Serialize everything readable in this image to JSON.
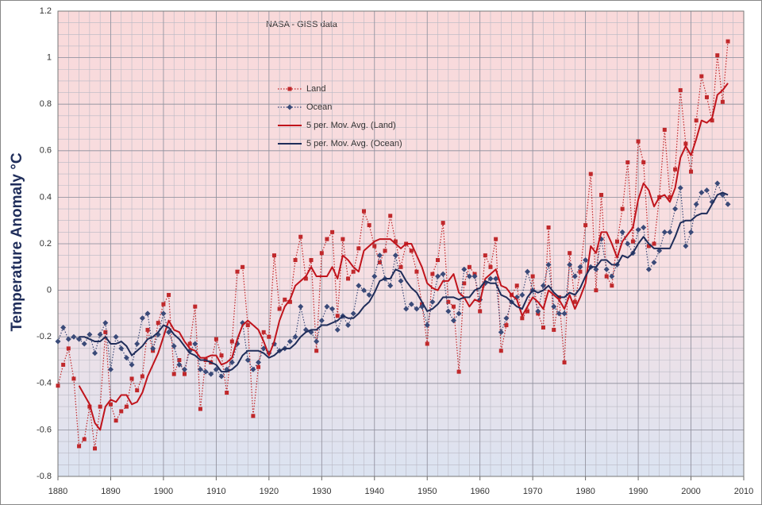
{
  "chart_data": {
    "type": "line",
    "annotation": "NASA - GISS data",
    "y_label": "Temperature Anomaly °C",
    "xlim": [
      1880,
      2010
    ],
    "xticks": [
      1880,
      1890,
      1900,
      1910,
      1920,
      1930,
      1940,
      1950,
      1960,
      1970,
      1980,
      1990,
      2000,
      2010
    ],
    "ylim": [
      -0.8,
      1.2
    ],
    "yticks": [
      -0.8,
      -0.6,
      -0.4,
      -0.2,
      0,
      0.2,
      0.4,
      0.6,
      0.8,
      1,
      1.2
    ],
    "grid": true,
    "x": [
      1880,
      1881,
      1882,
      1883,
      1884,
      1885,
      1886,
      1887,
      1888,
      1889,
      1890,
      1891,
      1892,
      1893,
      1894,
      1895,
      1896,
      1897,
      1898,
      1899,
      1900,
      1901,
      1902,
      1903,
      1904,
      1905,
      1906,
      1907,
      1908,
      1909,
      1910,
      1911,
      1912,
      1913,
      1914,
      1915,
      1916,
      1917,
      1918,
      1919,
      1920,
      1921,
      1922,
      1923,
      1924,
      1925,
      1926,
      1927,
      1928,
      1929,
      1930,
      1931,
      1932,
      1933,
      1934,
      1935,
      1936,
      1937,
      1938,
      1939,
      1940,
      1941,
      1942,
      1943,
      1944,
      1945,
      1946,
      1947,
      1948,
      1949,
      1950,
      1951,
      1952,
      1953,
      1954,
      1955,
      1956,
      1957,
      1958,
      1959,
      1960,
      1961,
      1962,
      1963,
      1964,
      1965,
      1966,
      1967,
      1968,
      1969,
      1970,
      1971,
      1972,
      1973,
      1974,
      1975,
      1976,
      1977,
      1978,
      1979,
      1980,
      1981,
      1982,
      1983,
      1984,
      1985,
      1986,
      1987,
      1988,
      1989,
      1990,
      1991,
      1992,
      1993,
      1994,
      1995,
      1996,
      1997,
      1998,
      1999,
      2000,
      2001,
      2002,
      2003,
      2004,
      2005,
      2006,
      2007
    ],
    "series": [
      {
        "name": "Land",
        "color": "#c0282b",
        "line_style": "dotted",
        "marker": "square",
        "values": [
          -0.41,
          -0.32,
          -0.25,
          -0.38,
          -0.67,
          -0.64,
          -0.5,
          -0.68,
          -0.5,
          -0.18,
          -0.49,
          -0.56,
          -0.52,
          -0.5,
          -0.38,
          -0.43,
          -0.37,
          -0.17,
          -0.26,
          -0.14,
          -0.06,
          -0.02,
          -0.36,
          -0.3,
          -0.36,
          -0.23,
          -0.07,
          -0.51,
          -0.3,
          -0.31,
          -0.21,
          -0.28,
          -0.44,
          -0.22,
          0.08,
          0.1,
          -0.15,
          -0.54,
          -0.33,
          -0.18,
          -0.2,
          0.15,
          -0.08,
          -0.04,
          -0.05,
          0.13,
          0.23,
          0.05,
          0.13,
          -0.26,
          0.16,
          0.22,
          0.25,
          -0.11,
          0.22,
          0.05,
          0.08,
          0.18,
          0.34,
          0.28,
          0.19,
          0.12,
          0.17,
          0.32,
          0.21,
          0.1,
          0.2,
          0.17,
          0.08,
          -0.06,
          -0.23,
          0.07,
          0.13,
          0.29,
          -0.05,
          -0.07,
          -0.35,
          0.03,
          0.1,
          0.07,
          -0.09,
          0.15,
          0.1,
          0.22,
          -0.26,
          -0.15,
          -0.02,
          0.02,
          -0.12,
          -0.09,
          0.06,
          -0.1,
          -0.16,
          0.27,
          -0.17,
          -0.03,
          -0.31,
          0.16,
          -0.05,
          0.08,
          0.28,
          0.5,
          0.0,
          0.41,
          0.06,
          0.02,
          0.21,
          0.35,
          0.55,
          0.21,
          0.64,
          0.55,
          0.19,
          0.2,
          0.4,
          0.69,
          0.4,
          0.52,
          0.86,
          0.63,
          0.51,
          0.73,
          0.92,
          0.83,
          0.73,
          1.01,
          0.81,
          1.07
        ]
      },
      {
        "name": "Ocean",
        "color": "#3a4a78",
        "line_style": "dotted",
        "marker": "diamond",
        "values": [
          -0.22,
          -0.16,
          -0.21,
          -0.2,
          -0.21,
          -0.23,
          -0.19,
          -0.27,
          -0.19,
          -0.14,
          -0.34,
          -0.2,
          -0.25,
          -0.29,
          -0.32,
          -0.23,
          -0.12,
          -0.1,
          -0.25,
          -0.19,
          -0.1,
          -0.18,
          -0.24,
          -0.32,
          -0.34,
          -0.26,
          -0.23,
          -0.34,
          -0.35,
          -0.36,
          -0.34,
          -0.37,
          -0.34,
          -0.31,
          -0.23,
          -0.14,
          -0.3,
          -0.34,
          -0.31,
          -0.25,
          -0.27,
          -0.23,
          -0.26,
          -0.25,
          -0.22,
          -0.2,
          -0.07,
          -0.17,
          -0.18,
          -0.22,
          -0.13,
          -0.07,
          -0.08,
          -0.17,
          -0.11,
          -0.15,
          -0.1,
          0.02,
          0.0,
          -0.02,
          0.06,
          0.15,
          0.05,
          0.02,
          0.15,
          0.04,
          -0.08,
          -0.06,
          -0.08,
          -0.07,
          -0.15,
          -0.05,
          0.06,
          0.07,
          -0.09,
          -0.13,
          -0.1,
          0.09,
          0.06,
          0.06,
          -0.04,
          0.03,
          0.05,
          0.05,
          -0.18,
          -0.12,
          -0.05,
          -0.03,
          -0.02,
          0.08,
          0.0,
          -0.09,
          0.02,
          0.11,
          -0.07,
          -0.1,
          -0.1,
          0.11,
          0.06,
          0.1,
          0.13,
          0.1,
          0.09,
          0.22,
          0.09,
          0.06,
          0.11,
          0.25,
          0.2,
          0.16,
          0.26,
          0.27,
          0.09,
          0.12,
          0.17,
          0.25,
          0.25,
          0.35,
          0.44,
          0.19,
          0.25,
          0.37,
          0.42,
          0.43,
          0.38,
          0.46,
          0.41,
          0.37
        ]
      },
      {
        "name": "5 per. Mov. Avg. (Land)",
        "color": "#c0141c",
        "line_style": "solid",
        "marker": null,
        "values": [
          null,
          null,
          null,
          null,
          -0.41,
          -0.45,
          -0.49,
          -0.57,
          -0.6,
          -0.5,
          -0.47,
          -0.48,
          -0.45,
          -0.45,
          -0.49,
          -0.48,
          -0.44,
          -0.37,
          -0.32,
          -0.27,
          -0.2,
          -0.13,
          -0.17,
          -0.18,
          -0.22,
          -0.25,
          -0.26,
          -0.29,
          -0.29,
          -0.28,
          -0.28,
          -0.32,
          -0.31,
          -0.29,
          -0.21,
          -0.15,
          -0.13,
          -0.15,
          -0.17,
          -0.22,
          -0.28,
          -0.22,
          -0.13,
          -0.07,
          -0.04,
          0.02,
          0.04,
          0.06,
          0.1,
          0.06,
          0.06,
          0.06,
          0.1,
          0.05,
          0.15,
          0.13,
          0.1,
          0.08,
          0.17,
          0.19,
          0.21,
          0.22,
          0.22,
          0.22,
          0.2,
          0.18,
          0.2,
          0.2,
          0.15,
          0.1,
          0.03,
          0.01,
          0.0,
          0.04,
          0.04,
          0.07,
          -0.01,
          -0.03,
          -0.07,
          -0.04,
          -0.05,
          0.05,
          0.07,
          0.09,
          0.02,
          0.01,
          -0.02,
          -0.04,
          -0.11,
          -0.07,
          -0.03,
          -0.05,
          -0.08,
          0.0,
          -0.02,
          -0.04,
          -0.08,
          -0.02,
          -0.08,
          -0.03,
          0.03,
          0.19,
          0.16,
          0.25,
          0.25,
          0.2,
          0.14,
          0.21,
          0.24,
          0.27,
          0.39,
          0.46,
          0.43,
          0.36,
          0.4,
          0.41,
          0.38,
          0.44,
          0.57,
          0.62,
          0.58,
          0.65,
          0.73,
          0.72,
          0.74,
          0.84,
          0.86,
          0.89
        ]
      },
      {
        "name": "5 per. Mov. Avg. (Ocean)",
        "color": "#1f2d5a",
        "line_style": "solid",
        "marker": null,
        "values": [
          null,
          null,
          null,
          null,
          -0.2,
          -0.2,
          -0.21,
          -0.22,
          -0.22,
          -0.2,
          -0.23,
          -0.23,
          -0.22,
          -0.24,
          -0.28,
          -0.26,
          -0.24,
          -0.21,
          -0.2,
          -0.18,
          -0.15,
          -0.16,
          -0.19,
          -0.21,
          -0.24,
          -0.27,
          -0.28,
          -0.3,
          -0.3,
          -0.31,
          -0.32,
          -0.35,
          -0.35,
          -0.34,
          -0.32,
          -0.28,
          -0.26,
          -0.26,
          -0.26,
          -0.27,
          -0.29,
          -0.28,
          -0.26,
          -0.25,
          -0.25,
          -0.23,
          -0.2,
          -0.18,
          -0.17,
          -0.17,
          -0.15,
          -0.15,
          -0.14,
          -0.13,
          -0.11,
          -0.12,
          -0.12,
          -0.1,
          -0.07,
          -0.05,
          -0.01,
          0.04,
          0.05,
          0.05,
          0.09,
          0.08,
          0.04,
          0.01,
          -0.01,
          -0.05,
          -0.09,
          -0.08,
          -0.06,
          -0.03,
          -0.03,
          -0.03,
          -0.04,
          -0.03,
          -0.03,
          0.0,
          0.01,
          0.04,
          0.03,
          0.03,
          -0.02,
          -0.03,
          -0.05,
          -0.07,
          -0.08,
          -0.03,
          0.0,
          -0.01,
          0.0,
          0.02,
          -0.01,
          -0.03,
          -0.03,
          -0.01,
          -0.02,
          0.01,
          0.06,
          0.1,
          0.1,
          0.13,
          0.13,
          0.11,
          0.11,
          0.15,
          0.14,
          0.16,
          0.2,
          0.23,
          0.2,
          0.18,
          0.18,
          0.18,
          0.18,
          0.23,
          0.29,
          0.3,
          0.3,
          0.32,
          0.33,
          0.33,
          0.37,
          0.41,
          0.42,
          0.41
        ]
      }
    ],
    "legend": "upper-left"
  }
}
